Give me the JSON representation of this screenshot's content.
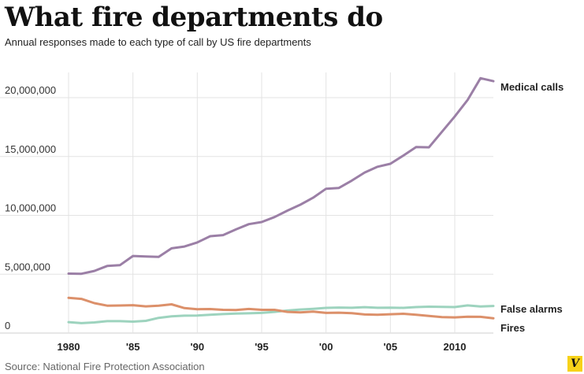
{
  "header": {
    "title": "What fire departments do",
    "subtitle": "Annual responses made to each type of call by US fire departments"
  },
  "footer": {
    "source": "Source: National Fire Protection Association",
    "logo_letter": "V"
  },
  "chart_data": {
    "type": "line",
    "title": "What fire departments do",
    "subtitle": "Annual responses made to each type of call by US fire departments",
    "xlabel": "",
    "ylabel": "",
    "xlim": [
      1980,
      2013
    ],
    "ylim": [
      0,
      21500000
    ],
    "grid": true,
    "legend": "inline-right",
    "x_ticks": [
      {
        "value": 1980,
        "label": "1980"
      },
      {
        "value": 1985,
        "label": "'85"
      },
      {
        "value": 1990,
        "label": "'90"
      },
      {
        "value": 1995,
        "label": "'95"
      },
      {
        "value": 2000,
        "label": "'00"
      },
      {
        "value": 2005,
        "label": "'05"
      },
      {
        "value": 2010,
        "label": "2010"
      }
    ],
    "y_ticks": [
      {
        "value": 0,
        "label": "0"
      },
      {
        "value": 5000000,
        "label": "5,000,000"
      },
      {
        "value": 10000000,
        "label": "10,000,000"
      },
      {
        "value": 15000000,
        "label": "15,000,000"
      },
      {
        "value": 20000000,
        "label": "20,000,000"
      }
    ],
    "x": [
      1980,
      1981,
      1982,
      1983,
      1984,
      1985,
      1986,
      1987,
      1988,
      1989,
      1990,
      1991,
      1992,
      1993,
      1994,
      1995,
      1996,
      1997,
      1998,
      1999,
      2000,
      2001,
      2002,
      2003,
      2004,
      2005,
      2006,
      2007,
      2008,
      2009,
      2010,
      2011,
      2012,
      2013
    ],
    "series": [
      {
        "name": "Medical calls",
        "color": "#9b7fa6",
        "values": [
          5050000,
          5040000,
          5280000,
          5700000,
          5770000,
          6550000,
          6510000,
          6470000,
          7200000,
          7350000,
          7700000,
          8230000,
          8320000,
          8800000,
          9250000,
          9430000,
          9850000,
          10400000,
          10900000,
          11500000,
          12260000,
          12330000,
          12950000,
          13640000,
          14130000,
          14380000,
          15080000,
          15800000,
          15780000,
          17100000,
          18400000,
          19800000,
          21650000,
          21400000
        ]
      },
      {
        "name": "False alarms",
        "color": "#9dd3be",
        "values": [
          930000,
          840000,
          900000,
          1010000,
          1010000,
          970000,
          1040000,
          1290000,
          1420000,
          1480000,
          1490000,
          1560000,
          1610000,
          1650000,
          1680000,
          1710000,
          1800000,
          1910000,
          2000000,
          2060000,
          2140000,
          2170000,
          2150000,
          2200000,
          2150000,
          2160000,
          2140000,
          2210000,
          2240000,
          2220000,
          2210000,
          2350000,
          2260000,
          2300000
        ]
      },
      {
        "name": "Fires",
        "color": "#dc906a",
        "values": [
          2990000,
          2900000,
          2540000,
          2330000,
          2340000,
          2370000,
          2270000,
          2330000,
          2440000,
          2120000,
          2030000,
          2040000,
          1970000,
          1960000,
          2050000,
          1970000,
          1970000,
          1800000,
          1760000,
          1820000,
          1710000,
          1730000,
          1690000,
          1580000,
          1550000,
          1600000,
          1640000,
          1560000,
          1450000,
          1350000,
          1330000,
          1390000,
          1380000,
          1260000
        ]
      }
    ]
  }
}
